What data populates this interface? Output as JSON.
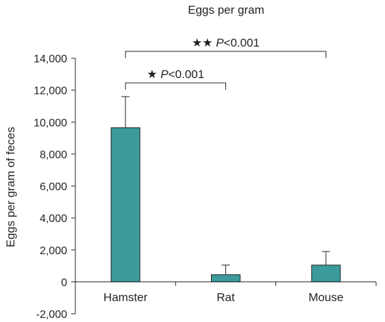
{
  "chart_data": {
    "type": "bar",
    "title": "Eggs per gram",
    "xlabel": "",
    "ylabel": "Eggs per gram of feces",
    "categories": [
      "Hamster",
      "Rat",
      "Mouse"
    ],
    "values": [
      9650,
      450,
      1050
    ],
    "error_upper": [
      11600,
      1050,
      1900
    ],
    "ylim": [
      -2000,
      14000
    ],
    "yticks": [
      -2000,
      0,
      2000,
      4000,
      6000,
      8000,
      10000,
      12000,
      14000
    ],
    "ytick_labels": [
      "-2,000",
      "0",
      "2,000",
      "4,000",
      "6,000",
      "8,000",
      "10,000",
      "12,000",
      "14,000"
    ],
    "grid": false,
    "legend": "none",
    "bar_color": "#3a9b9a",
    "significance": [
      {
        "from": 0,
        "to": 2,
        "stars": "★★",
        "p_prefix": "P",
        "p_rest": "<0.001"
      },
      {
        "from": 0,
        "to": 1,
        "stars": "★",
        "p_prefix": "P",
        "p_rest": "<0.001"
      }
    ]
  }
}
